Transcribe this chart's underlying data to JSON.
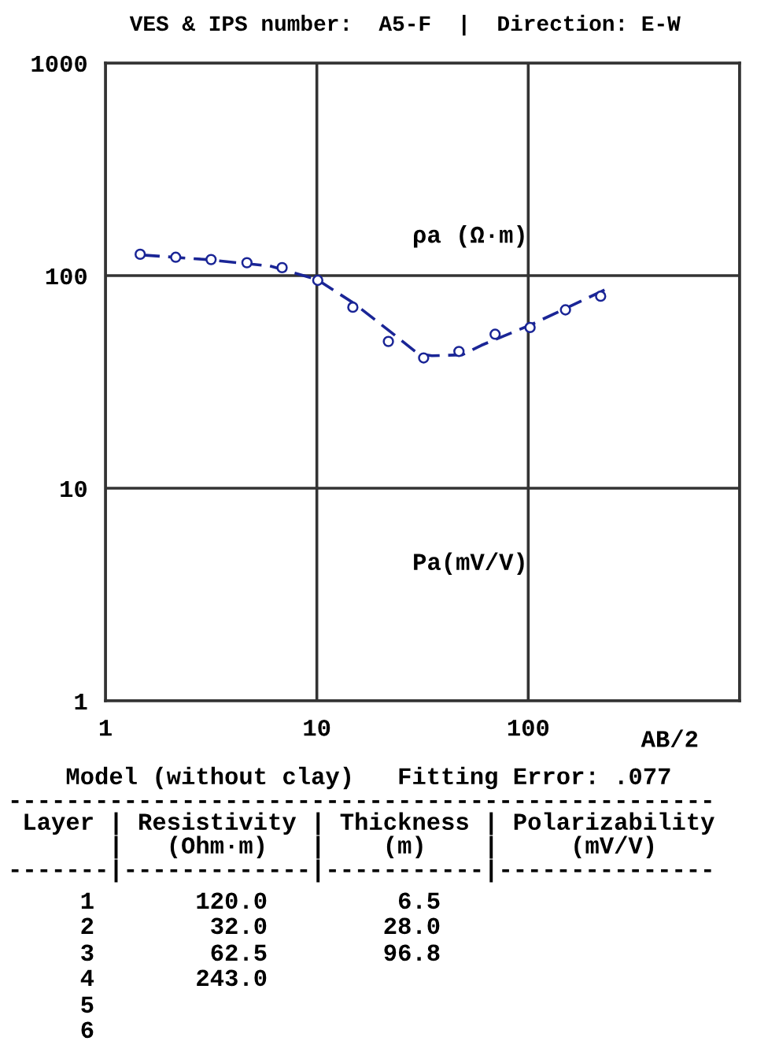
{
  "chart_data": {
    "type": "scatter",
    "title": "VES & IPS number:  A5-F  |  Direction: E-W",
    "xlabel": "AB/2",
    "log": "xy",
    "xlim": [
      1,
      1000
    ],
    "ylim": [
      1,
      1000
    ],
    "xticks": [
      1,
      10,
      100,
      {
        "value": 1000,
        "label": null
      }
    ],
    "yticks": [
      1,
      10,
      100,
      1000
    ],
    "grid": true,
    "series": [
      {
        "color": "#1a2596",
        "marker": "circle",
        "x": [
          1.46,
          2.15,
          3.16,
          4.67,
          6.85,
          10.1,
          14.8,
          21.8,
          32,
          47,
          69.7,
          102,
          150,
          220
        ],
        "values": [
          126,
          122,
          119,
          115,
          109,
          95,
          71,
          49,
          41,
          44,
          53,
          57,
          69,
          80
        ]
      },
      {
        "type": "line",
        "color": "#1a2596",
        "line_style": "dashed",
        "marker": "none",
        "x": [
          1.5,
          3,
          6,
          10,
          15,
          22,
          30,
          35,
          48.7,
          60,
          102,
          150,
          243
        ],
        "values": [
          125,
          119,
          111,
          96,
          74,
          55,
          43,
          42,
          42.4,
          47,
          58.5,
          70,
          88
        ]
      }
    ],
    "annotations": [
      "ρa (Ω·m)",
      "Pa(mV/V)",
      "    Model (without clay)   Fitting Error: .077",
      "-------------------------------------------------",
      " Layer | Resistivity | Thickness | Polarizability",
      "       |   (Ohm·m)   |    (m)    |     (mV/V)",
      "-------|-------------|-----------|---------------",
      "     1       120.0         6.5",
      "     2        32.0        28.0",
      "     3        62.5        96.8",
      "     4       243.0",
      "     5",
      "     6"
    ]
  }
}
